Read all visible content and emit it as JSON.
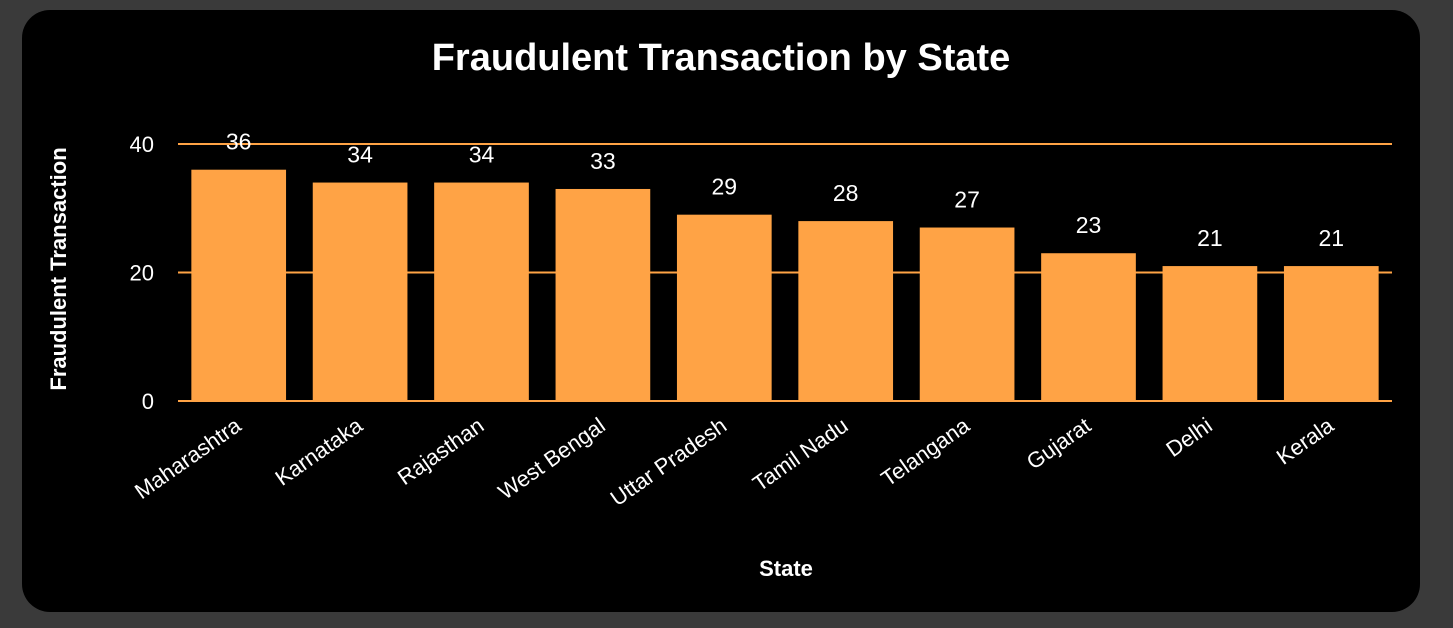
{
  "chart_data": {
    "type": "bar",
    "title": "Fraudulent Transaction by State",
    "xlabel": "State",
    "ylabel": "Fraudulent Transaction",
    "categories": [
      "Maharashtra",
      "Karnataka",
      "Rajasthan",
      "West Bengal",
      "Uttar Pradesh",
      "Tamil Nadu",
      "Telangana",
      "Gujarat",
      "Delhi",
      "Kerala"
    ],
    "values": [
      36,
      34,
      34,
      33,
      29,
      28,
      27,
      23,
      21,
      21
    ],
    "ylim": [
      0,
      40
    ],
    "yticks": [
      "0",
      "20",
      "40"
    ],
    "grid": true,
    "legend": "none",
    "colors": {
      "bar": "#FFA345",
      "gridline": "#FFA345",
      "background": "#000000",
      "text": "#ffffff"
    }
  }
}
